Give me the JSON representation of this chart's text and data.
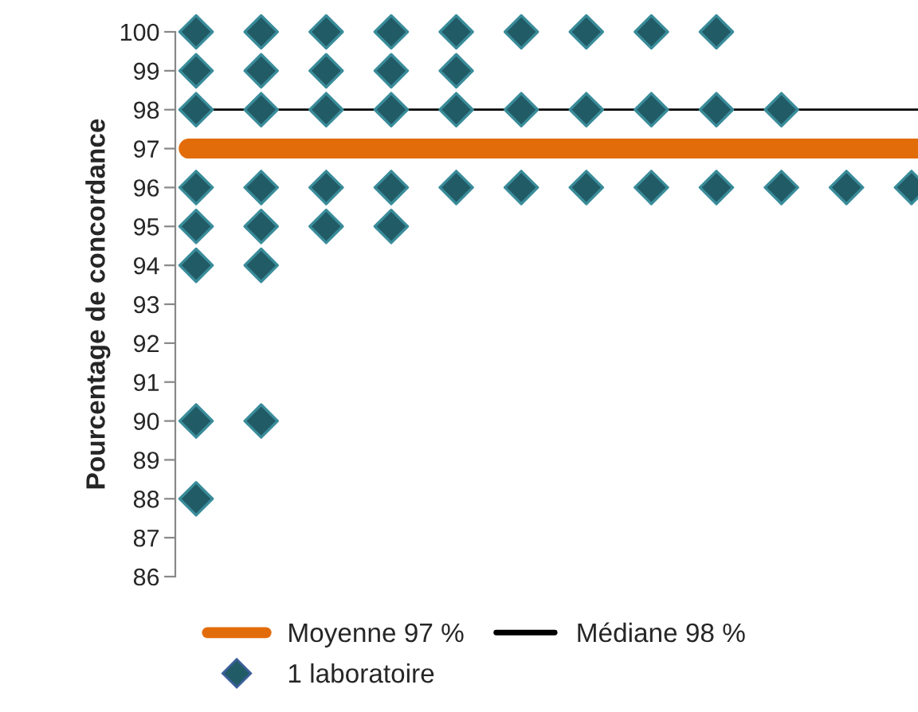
{
  "chart_data": {
    "type": "scatter",
    "ylabel": "Pourcentage de concordance",
    "categories": [
      null,
      null,
      null,
      null,
      null,
      null,
      null,
      null,
      null,
      null,
      null,
      null
    ],
    "series": [
      {
        "name": "1 laboratoire",
        "color": "#215b66",
        "values": [
          100,
          100,
          100,
          100,
          100,
          100,
          100,
          100,
          100,
          null,
          null,
          null
        ]
      },
      {
        "color": "#215b66",
        "values": [
          99,
          99,
          99,
          99,
          99,
          null,
          null,
          null,
          null,
          null,
          null,
          null
        ]
      },
      {
        "color": "#215b66",
        "values": [
          98,
          98,
          98,
          98,
          98,
          98,
          98,
          98,
          98,
          98,
          null,
          null
        ]
      },
      {
        "color": "#215b66",
        "values": [
          96,
          96,
          96,
          96,
          96,
          96,
          96,
          96,
          96,
          96,
          96,
          96
        ]
      },
      {
        "color": "#215b66",
        "values": [
          95,
          95,
          95,
          95,
          null,
          null,
          null,
          null,
          null,
          null,
          null,
          null
        ]
      },
      {
        "color": "#215b66",
        "values": [
          94,
          94,
          null,
          null,
          null,
          null,
          null,
          null,
          null,
          null,
          null,
          null
        ]
      },
      {
        "color": "#215b66",
        "values": [
          90,
          90,
          null,
          null,
          null,
          null,
          null,
          null,
          null,
          null,
          null,
          null
        ]
      },
      {
        "color": "#215b66",
        "values": [
          88,
          null,
          null,
          null,
          null,
          null,
          null,
          null,
          null,
          null,
          null,
          null
        ]
      }
    ],
    "ref_lines": [
      {
        "axis": "y",
        "value": 97,
        "label": "Moyenne 97 %",
        "color": "#e36c0a",
        "line_style": "solid"
      },
      {
        "axis": "y",
        "value": 98,
        "label": "Médiane 98 %",
        "color": "#000000",
        "line_style": "solid"
      }
    ],
    "ylim": [
      86,
      100
    ],
    "yticks": [
      86,
      87,
      88,
      89,
      90,
      91,
      92,
      93,
      94,
      95,
      96,
      97,
      98,
      99,
      100
    ],
    "tick_labels": "y",
    "marker": "diamond",
    "legend": "bottom",
    "grid": false
  }
}
